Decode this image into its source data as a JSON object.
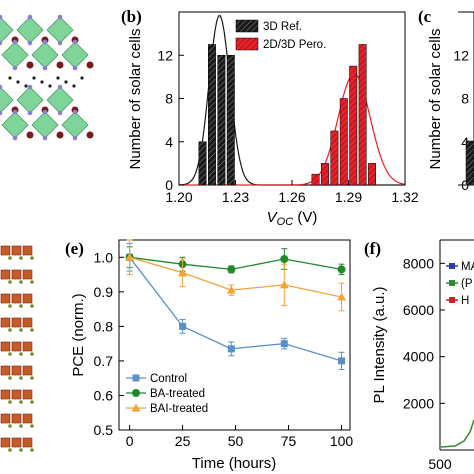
{
  "panels": {
    "b": "(b)",
    "c": "(c",
    "e": "(e)",
    "f": "(f)"
  },
  "colors": {
    "ref": "#1a1a1a",
    "pero": "#e8202a",
    "control": "#5b8fc9",
    "ba": "#1f8a2a",
    "bai": "#f2a43a"
  },
  "chart_data": [
    {
      "id": "b",
      "type": "bar",
      "xlabel": "V_OC (V)",
      "xlabel_main": "V",
      "xlabel_sub": "OC",
      "xlabel_unit": " (V)",
      "ylabel": "Number of solar cells",
      "xlim": [
        1.2,
        1.32
      ],
      "ylim": [
        0,
        16
      ],
      "xticks": [
        "1.20",
        "1.23",
        "1.26",
        "1.29",
        "1.32"
      ],
      "yticks": [
        "0",
        "4",
        "8",
        "12"
      ],
      "legend_position": "top-right",
      "bin_width": 0.005,
      "series": [
        {
          "name": "3D Ref.",
          "color": "#1a1a1a",
          "centers": [
            1.2125,
            1.2175,
            1.2225,
            1.2275
          ],
          "values": [
            4,
            13,
            12,
            12
          ],
          "fit_mean": 1.2215,
          "fit_sigma": 0.0055,
          "fit_peak": 15.7
        },
        {
          "name": "2D/3D Pero.",
          "color": "#e8202a",
          "centers": [
            1.2725,
            1.2775,
            1.2825,
            1.2875,
            1.2925,
            1.2975,
            1.3025
          ],
          "values": [
            1,
            2,
            5,
            8,
            11,
            13,
            2
          ],
          "fit_mean": 1.293,
          "fit_sigma": 0.0085,
          "fit_peak": 10.3
        }
      ]
    },
    {
      "id": "c",
      "type": "bar",
      "ylabel": "Number of solar cells",
      "yticks": [
        "0",
        "4",
        "8",
        "12"
      ],
      "ylim": [
        0,
        16
      ],
      "visible_bar_value": 4
    },
    {
      "id": "e",
      "type": "line",
      "xlabel": "Time (hours)",
      "ylabel": "PCE (norm.)",
      "xlim": [
        -5,
        104
      ],
      "ylim": [
        0.5,
        1.05
      ],
      "xticks": [
        0,
        25,
        50,
        75,
        100
      ],
      "yticks": [
        "0.5",
        "0.6",
        "0.7",
        "0.8",
        "0.9",
        "1.0"
      ],
      "legend_position": "bottom-left",
      "x": [
        0,
        25,
        48,
        73,
        100
      ],
      "series": [
        {
          "name": "Control",
          "color": "#5b8fc9",
          "marker": "square",
          "values": [
            1.0,
            0.8,
            0.735,
            0.75,
            0.7
          ],
          "errors": [
            0.04,
            0.02,
            0.02,
            0.015,
            0.025
          ]
        },
        {
          "name": "BA-treated",
          "color": "#1f8a2a",
          "marker": "circle",
          "values": [
            1.0,
            0.98,
            0.965,
            0.995,
            0.965
          ],
          "errors": [
            0.03,
            0.02,
            0.01,
            0.03,
            0.015
          ]
        },
        {
          "name": "BAI-treated",
          "color": "#f2a43a",
          "marker": "triangle",
          "values": [
            1.0,
            0.955,
            0.905,
            0.92,
            0.885
          ],
          "errors": [
            0.05,
            0.04,
            0.015,
            0.06,
            0.04
          ]
        }
      ]
    },
    {
      "id": "f",
      "type": "line",
      "ylabel": "PL Intensity (a.u.)",
      "xlim": [
        500,
        560
      ],
      "ylim": [
        0,
        9000
      ],
      "xticks": [
        "500"
      ],
      "yticks": [
        2000,
        4000,
        6000,
        8000
      ],
      "legend_position": "top-right",
      "series": [
        {
          "name": "MA",
          "color": "#2b3aa8"
        },
        {
          "name": "(P",
          "color": "#2e8b2e"
        },
        {
          "name": "H",
          "color": "#cc2222"
        }
      ]
    }
  ]
}
